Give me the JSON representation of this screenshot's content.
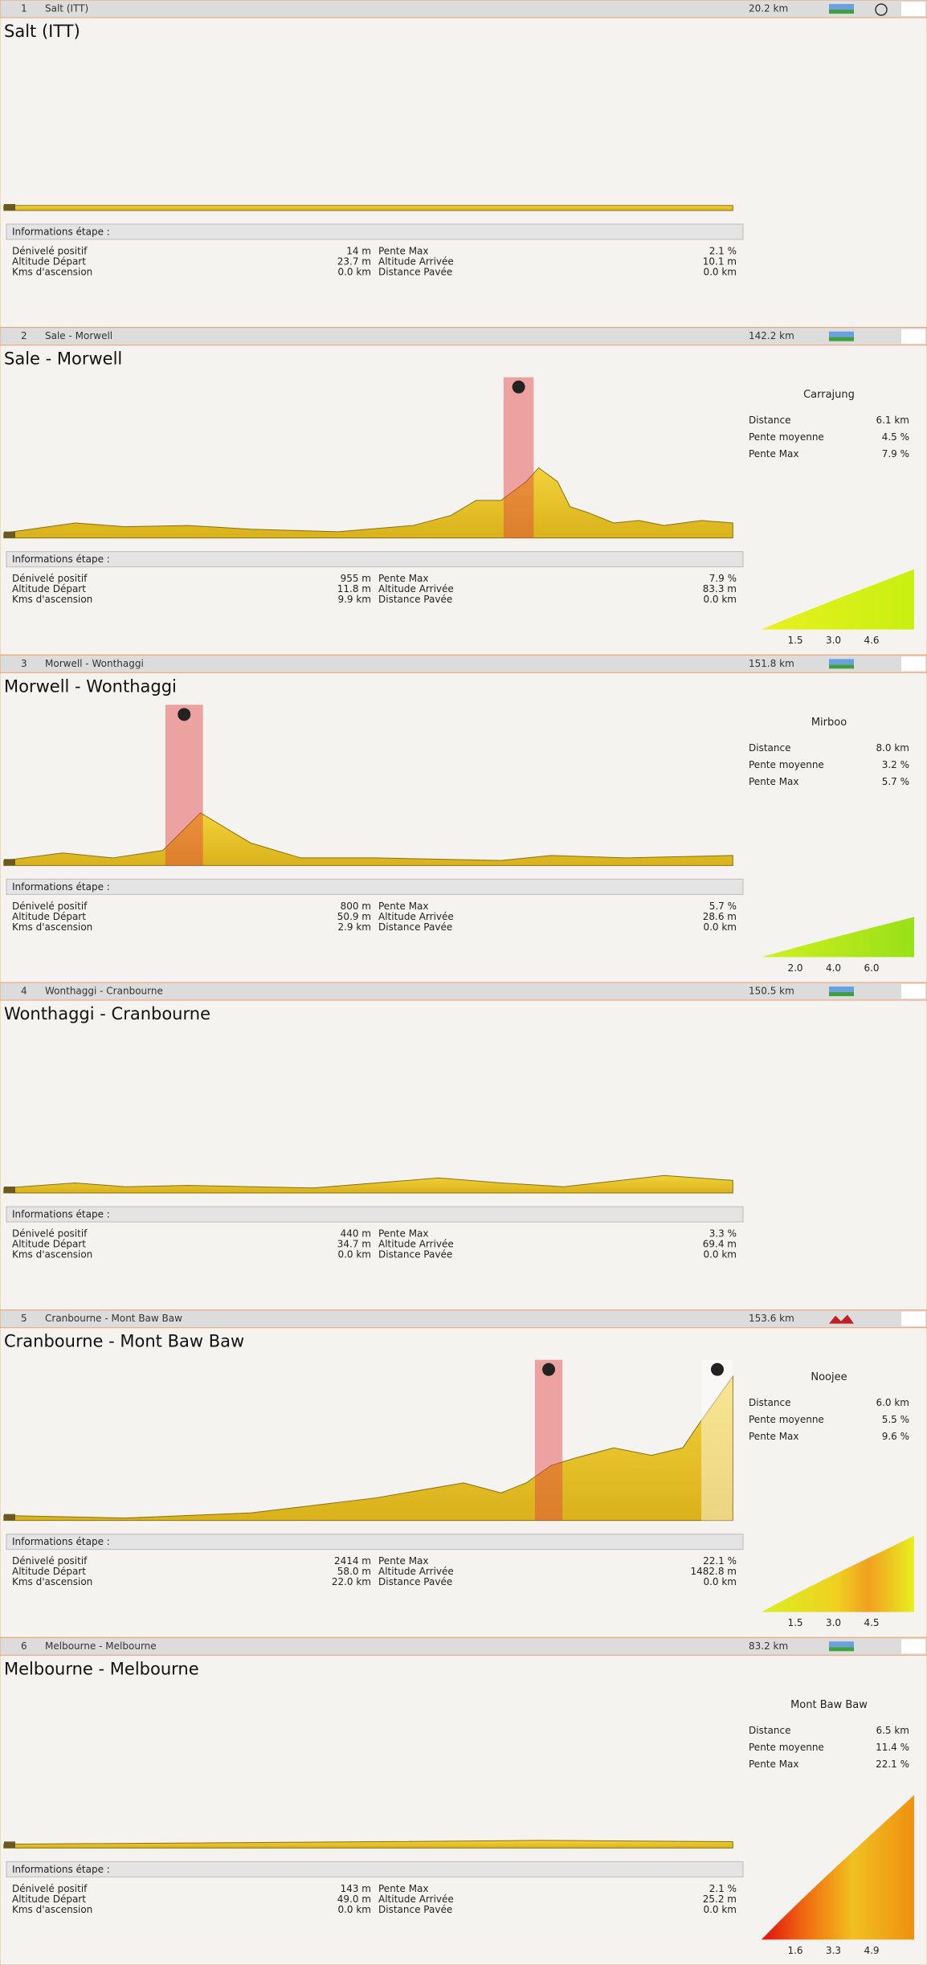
{
  "labels": {
    "info_title": "Informations étape :",
    "info": [
      "Dénivelé positif",
      "Altitude Départ",
      "Kms d'ascension",
      "Pente Max",
      "Altitude Arrivée",
      "Distance Pavée"
    ],
    "climb": [
      "Distance",
      "Pente moyenne",
      "Pente Max"
    ]
  },
  "stages": [
    {
      "number": 1,
      "name": "Salt (ITT)",
      "distance": "20.2 km",
      "title": "Salt (ITT)",
      "info": [
        "14 m",
        "23.7 m",
        "0.0 km",
        "2.1 %",
        "10.1 m",
        "0.0 km"
      ]
    },
    {
      "number": 2,
      "name": "Sale - Morwell",
      "distance": "142.2 km",
      "title": "Sale - Morwell",
      "info": [
        "955 m",
        "11.8 m",
        "9.9 km",
        "7.9 %",
        "83.3 m",
        "0.0 km"
      ],
      "climb": {
        "name": "Carrajung",
        "values": [
          "6.1 km",
          "4.5 %",
          "7.9 %"
        ],
        "ticks": [
          "1.5",
          "3.0",
          "4.6"
        ]
      }
    },
    {
      "number": 3,
      "name": "Morwell - Wonthaggi",
      "distance": "151.8 km",
      "title": "Morwell - Wonthaggi",
      "info": [
        "800 m",
        "50.9 m",
        "2.9 km",
        "5.7 %",
        "28.6 m",
        "0.0 km"
      ],
      "climb": {
        "name": "Mirboo",
        "values": [
          "8.0 km",
          "3.2 %",
          "5.7 %"
        ],
        "ticks": [
          "2.0",
          "4.0",
          "6.0"
        ]
      }
    },
    {
      "number": 4,
      "name": "Wonthaggi - Cranbourne",
      "distance": "150.5 km",
      "title": "Wonthaggi - Cranbourne",
      "info": [
        "440 m",
        "34.7 m",
        "0.0 km",
        "3.3 %",
        "69.4 m",
        "0.0 km"
      ]
    },
    {
      "number": 5,
      "name": "Cranbourne - Mont Baw Baw",
      "distance": "153.6 km",
      "title": "Cranbourne - Mont Baw Baw",
      "info": [
        "2414 m",
        "58.0 m",
        "22.0 km",
        "22.1 %",
        "1482.8 m",
        "0.0 km"
      ],
      "climb": {
        "name": "Noojee",
        "values": [
          "6.0 km",
          "5.5 %",
          "9.6 %"
        ],
        "ticks": [
          "1.5",
          "3.0",
          "4.5"
        ]
      }
    },
    {
      "number": 6,
      "name": "Melbourne - Melbourne",
      "distance": "83.2 km",
      "title": "Melbourne - Melbourne",
      "info": [
        "143 m",
        "49.0 m",
        "0.0 km",
        "2.1 %",
        "25.2 m",
        "0.0 km"
      ],
      "climb": {
        "name": "Mont Baw Baw",
        "values": [
          "6.5 km",
          "11.4 %",
          "22.1 %"
        ],
        "ticks": [
          "1.6",
          "3.3",
          "4.9"
        ]
      }
    }
  ]
}
